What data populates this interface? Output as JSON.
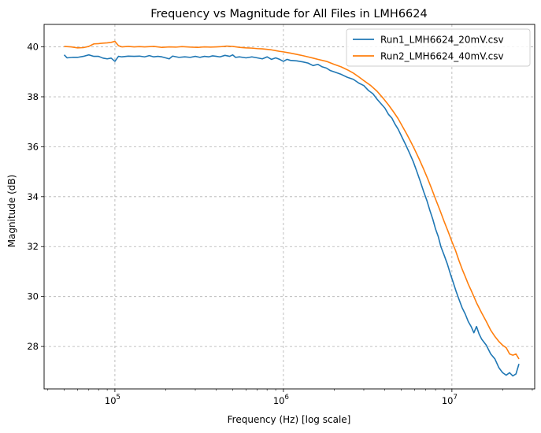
{
  "chart_data": {
    "type": "line",
    "title": "Frequency vs Magnitude for All Files in LMH6624",
    "xlabel": "Frequency (Hz) [log scale]",
    "ylabel": "Magnitude (dB)",
    "xscale": "log",
    "xlim": [
      38000,
      31000000
    ],
    "ylim": [
      26.3,
      40.9
    ],
    "x_ticks": [
      {
        "value": 100000,
        "base": "10",
        "exp": "5"
      },
      {
        "value": 1000000,
        "base": "10",
        "exp": "6"
      },
      {
        "value": 10000000,
        "base": "10",
        "exp": "7"
      }
    ],
    "y_ticks": [
      28,
      30,
      32,
      34,
      36,
      38,
      40
    ],
    "grid": true,
    "legend_position": "top-right",
    "series": [
      {
        "name": "Run1_LMH6624_20mV.csv",
        "color": "#1f77b4",
        "points": [
          [
            50000,
            39.68
          ],
          [
            52000,
            39.56
          ],
          [
            56000,
            39.58
          ],
          [
            60000,
            39.58
          ],
          [
            65000,
            39.62
          ],
          [
            70000,
            39.68
          ],
          [
            75000,
            39.62
          ],
          [
            80000,
            39.62
          ],
          [
            85000,
            39.55
          ],
          [
            90000,
            39.52
          ],
          [
            95000,
            39.55
          ],
          [
            100000,
            39.42
          ],
          [
            105000,
            39.62
          ],
          [
            110000,
            39.6
          ],
          [
            120000,
            39.63
          ],
          [
            130000,
            39.62
          ],
          [
            140000,
            39.63
          ],
          [
            150000,
            39.6
          ],
          [
            160000,
            39.65
          ],
          [
            170000,
            39.6
          ],
          [
            180000,
            39.62
          ],
          [
            190000,
            39.6
          ],
          [
            200000,
            39.56
          ],
          [
            210000,
            39.52
          ],
          [
            220000,
            39.63
          ],
          [
            240000,
            39.58
          ],
          [
            260000,
            39.6
          ],
          [
            280000,
            39.58
          ],
          [
            300000,
            39.62
          ],
          [
            320000,
            39.58
          ],
          [
            340000,
            39.62
          ],
          [
            360000,
            39.6
          ],
          [
            380000,
            39.64
          ],
          [
            400000,
            39.62
          ],
          [
            420000,
            39.6
          ],
          [
            450000,
            39.66
          ],
          [
            480000,
            39.62
          ],
          [
            500000,
            39.68
          ],
          [
            520000,
            39.58
          ],
          [
            550000,
            39.6
          ],
          [
            600000,
            39.56
          ],
          [
            650000,
            39.6
          ],
          [
            700000,
            39.56
          ],
          [
            750000,
            39.52
          ],
          [
            800000,
            39.6
          ],
          [
            850000,
            39.5
          ],
          [
            900000,
            39.56
          ],
          [
            950000,
            39.5
          ],
          [
            1000000,
            39.42
          ],
          [
            1050000,
            39.5
          ],
          [
            1100000,
            39.46
          ],
          [
            1200000,
            39.44
          ],
          [
            1300000,
            39.4
          ],
          [
            1400000,
            39.35
          ],
          [
            1500000,
            39.25
          ],
          [
            1600000,
            39.3
          ],
          [
            1700000,
            39.2
          ],
          [
            1800000,
            39.15
          ],
          [
            1900000,
            39.05
          ],
          [
            2000000,
            39.0
          ],
          [
            2200000,
            38.9
          ],
          [
            2400000,
            38.78
          ],
          [
            2600000,
            38.7
          ],
          [
            2800000,
            38.55
          ],
          [
            3000000,
            38.45
          ],
          [
            3200000,
            38.25
          ],
          [
            3400000,
            38.12
          ],
          [
            3600000,
            37.9
          ],
          [
            3800000,
            37.72
          ],
          [
            4000000,
            37.55
          ],
          [
            4200000,
            37.3
          ],
          [
            4400000,
            37.15
          ],
          [
            4600000,
            36.9
          ],
          [
            4800000,
            36.7
          ],
          [
            5000000,
            36.45
          ],
          [
            5300000,
            36.1
          ],
          [
            5600000,
            35.75
          ],
          [
            5900000,
            35.4
          ],
          [
            6200000,
            35.0
          ],
          [
            6500000,
            34.6
          ],
          [
            6800000,
            34.2
          ],
          [
            7100000,
            33.85
          ],
          [
            7400000,
            33.45
          ],
          [
            7700000,
            33.1
          ],
          [
            8000000,
            32.7
          ],
          [
            8300000,
            32.4
          ],
          [
            8600000,
            32.0
          ],
          [
            9000000,
            31.65
          ],
          [
            9400000,
            31.3
          ],
          [
            9800000,
            30.9
          ],
          [
            10200000,
            30.55
          ],
          [
            10600000,
            30.2
          ],
          [
            11000000,
            29.9
          ],
          [
            11500000,
            29.55
          ],
          [
            12000000,
            29.3
          ],
          [
            12500000,
            29.0
          ],
          [
            13000000,
            28.8
          ],
          [
            13500000,
            28.55
          ],
          [
            14000000,
            28.8
          ],
          [
            14500000,
            28.5
          ],
          [
            15000000,
            28.3
          ],
          [
            16000000,
            28.05
          ],
          [
            17000000,
            27.7
          ],
          [
            18000000,
            27.5
          ],
          [
            19000000,
            27.15
          ],
          [
            20000000,
            26.95
          ],
          [
            21000000,
            26.85
          ],
          [
            22000000,
            26.95
          ],
          [
            23000000,
            26.82
          ],
          [
            24000000,
            26.9
          ],
          [
            25000000,
            27.3
          ]
        ]
      },
      {
        "name": "Run2_LMH6624_40mV.csv",
        "color": "#ff7f0e",
        "points": [
          [
            50000,
            40.02
          ],
          [
            55000,
            40.0
          ],
          [
            60000,
            39.96
          ],
          [
            65000,
            39.97
          ],
          [
            70000,
            40.02
          ],
          [
            75000,
            40.12
          ],
          [
            80000,
            40.13
          ],
          [
            85000,
            40.15
          ],
          [
            90000,
            40.16
          ],
          [
            95000,
            40.18
          ],
          [
            100000,
            40.22
          ],
          [
            105000,
            40.05
          ],
          [
            110000,
            40.0
          ],
          [
            120000,
            40.02
          ],
          [
            130000,
            40.0
          ],
          [
            140000,
            40.01
          ],
          [
            150000,
            40.0
          ],
          [
            170000,
            40.02
          ],
          [
            190000,
            39.98
          ],
          [
            210000,
            40.0
          ],
          [
            230000,
            39.99
          ],
          [
            250000,
            40.01
          ],
          [
            280000,
            39.99
          ],
          [
            310000,
            39.98
          ],
          [
            340000,
            40.0
          ],
          [
            370000,
            39.99
          ],
          [
            400000,
            40.0
          ],
          [
            430000,
            40.01
          ],
          [
            460000,
            40.03
          ],
          [
            500000,
            40.02
          ],
          [
            550000,
            39.98
          ],
          [
            600000,
            39.96
          ],
          [
            650000,
            39.95
          ],
          [
            700000,
            39.93
          ],
          [
            750000,
            39.92
          ],
          [
            800000,
            39.9
          ],
          [
            850000,
            39.88
          ],
          [
            900000,
            39.85
          ],
          [
            950000,
            39.82
          ],
          [
            1000000,
            39.8
          ],
          [
            1100000,
            39.75
          ],
          [
            1200000,
            39.7
          ],
          [
            1300000,
            39.65
          ],
          [
            1400000,
            39.6
          ],
          [
            1500000,
            39.55
          ],
          [
            1600000,
            39.5
          ],
          [
            1800000,
            39.42
          ],
          [
            2000000,
            39.3
          ],
          [
            2200000,
            39.2
          ],
          [
            2400000,
            39.08
          ],
          [
            2600000,
            38.95
          ],
          [
            2800000,
            38.8
          ],
          [
            3000000,
            38.65
          ],
          [
            3300000,
            38.45
          ],
          [
            3600000,
            38.22
          ],
          [
            3900000,
            37.95
          ],
          [
            4200000,
            37.68
          ],
          [
            4500000,
            37.4
          ],
          [
            4800000,
            37.12
          ],
          [
            5100000,
            36.8
          ],
          [
            5400000,
            36.5
          ],
          [
            5700000,
            36.2
          ],
          [
            6000000,
            35.9
          ],
          [
            6400000,
            35.5
          ],
          [
            6800000,
            35.1
          ],
          [
            7200000,
            34.7
          ],
          [
            7600000,
            34.3
          ],
          [
            8000000,
            33.9
          ],
          [
            8500000,
            33.45
          ],
          [
            9000000,
            33.0
          ],
          [
            9500000,
            32.6
          ],
          [
            10000000,
            32.2
          ],
          [
            10500000,
            31.85
          ],
          [
            11000000,
            31.45
          ],
          [
            11500000,
            31.1
          ],
          [
            12000000,
            30.8
          ],
          [
            12500000,
            30.5
          ],
          [
            13000000,
            30.25
          ],
          [
            13500000,
            30.0
          ],
          [
            14000000,
            29.75
          ],
          [
            15000000,
            29.35
          ],
          [
            16000000,
            29.0
          ],
          [
            17000000,
            28.65
          ],
          [
            18000000,
            28.4
          ],
          [
            19000000,
            28.2
          ],
          [
            20000000,
            28.05
          ],
          [
            21000000,
            27.95
          ],
          [
            22000000,
            27.7
          ],
          [
            23000000,
            27.65
          ],
          [
            24000000,
            27.7
          ],
          [
            25000000,
            27.5
          ]
        ]
      }
    ]
  }
}
